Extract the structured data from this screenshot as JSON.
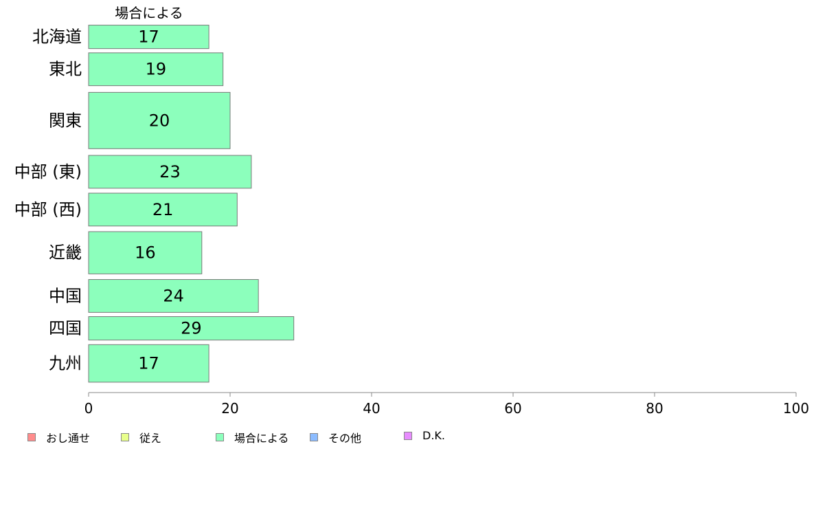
{
  "chart_data": {
    "type": "bar",
    "orientation": "horizontal",
    "series_title": "場合による",
    "categories": [
      "北海道",
      "東北",
      "関東",
      "中部 (東)",
      "中部 (西)",
      "近畿",
      "中国",
      "四国",
      "九州"
    ],
    "values": [
      17,
      19,
      20,
      23,
      21,
      16,
      24,
      29,
      17
    ],
    "value_labels": [
      "17",
      "19",
      "20",
      "23",
      "21",
      "16",
      "24",
      "29",
      "17"
    ],
    "bar_widths": [
      5,
      7,
      12,
      7,
      7,
      9,
      7,
      5,
      8
    ],
    "xlim": [
      0,
      100
    ],
    "xticks": [
      "0",
      "20",
      "40",
      "60",
      "80",
      "100"
    ],
    "xtick_values": [
      0,
      20,
      40,
      60,
      80,
      100
    ],
    "grid": false,
    "bar_color": "#8cffbc",
    "legend": {
      "placement": "bottom-left",
      "items": [
        {
          "label": "おし通せ",
          "color": "#ff8c8c"
        },
        {
          "label": "従え",
          "color": "#e8ff8c"
        },
        {
          "label": "場合による",
          "color": "#8cffbc"
        },
        {
          "label": "その他",
          "color": "#8cbcff"
        },
        {
          "label": "D.K.",
          "color": "#e88cff"
        }
      ]
    }
  }
}
